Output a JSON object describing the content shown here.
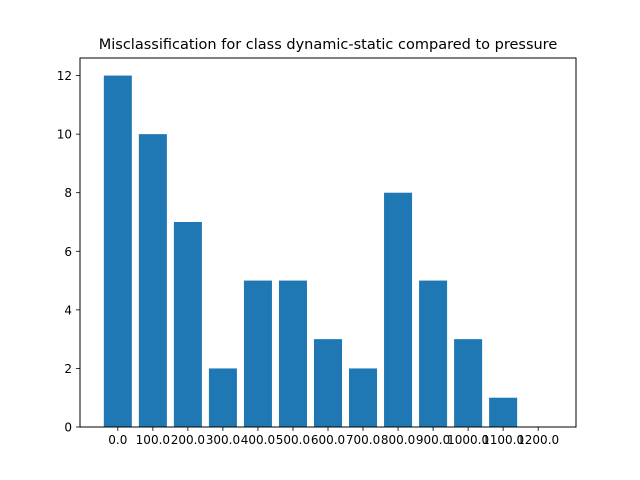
{
  "chart_data": {
    "type": "bar",
    "title": "Misclassification for class dynamic-static compared to pressure",
    "xlabel": "",
    "ylabel": "",
    "categories": [
      "0.0",
      "100.0",
      "200.0",
      "300.0",
      "400.0",
      "500.0",
      "600.0",
      "700.0",
      "800.0",
      "900.0",
      "1000.0",
      "1100.0",
      "1200.0"
    ],
    "values": [
      12,
      10,
      7,
      2,
      5,
      5,
      3,
      2,
      8,
      5,
      3,
      1,
      0
    ],
    "ylim": [
      0,
      12.6
    ],
    "yticks": [
      0,
      2,
      4,
      6,
      8,
      10,
      12
    ],
    "bar_color": "#1f77b4",
    "grid": false
  }
}
